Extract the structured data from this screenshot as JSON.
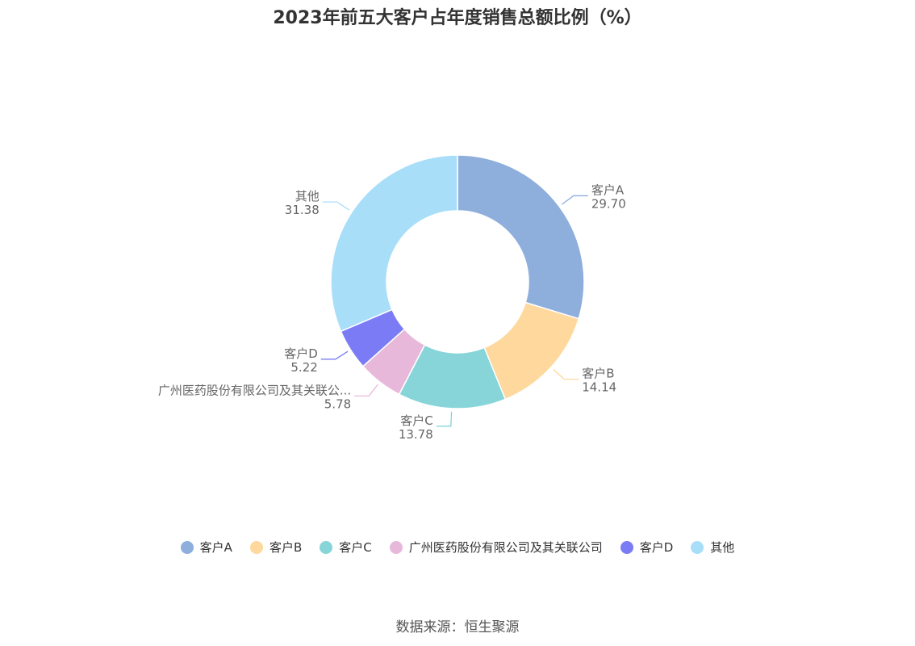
{
  "title": "2023年前五大客户占年度销售总额比例（%）",
  "source": "数据来源：恒生聚源",
  "chart_data": {
    "type": "pie",
    "style": "donut",
    "categories": [
      "客户A",
      "客户B",
      "客户C",
      "广州医药股份有限公司及其关联公司",
      "客户D",
      "其他"
    ],
    "label_names": [
      "客户A",
      "客户B",
      "客户C",
      "广州医药股份有限公司及其关联公...",
      "客户D",
      "其他"
    ],
    "values": [
      29.7,
      14.14,
      13.78,
      5.78,
      5.22,
      31.38
    ],
    "value_labels": [
      "29.70",
      "14.14",
      "13.78",
      "5.78",
      "5.22",
      "31.38"
    ],
    "colors": [
      "#8eaedc",
      "#fed89c",
      "#87d5d9",
      "#e8b8da",
      "#7b7cf5",
      "#a9def9"
    ],
    "legend_position": "bottom"
  }
}
